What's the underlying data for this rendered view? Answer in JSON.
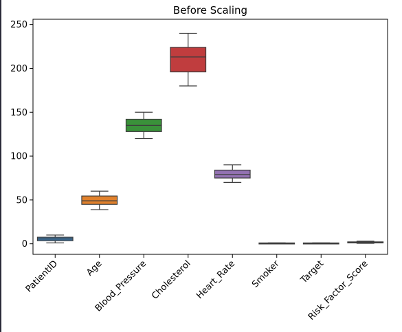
{
  "chart_data": {
    "type": "box",
    "title": "Before Scaling",
    "xlabel": "",
    "ylabel": "",
    "ylim": [
      -12,
      256
    ],
    "yticks": [
      0,
      50,
      100,
      150,
      200,
      250
    ],
    "grid": false,
    "legend": "none",
    "categories": [
      "PatientID",
      "Age",
      "Blood_Pressure",
      "Cholesterol",
      "Heart_Rate",
      "Smoker",
      "Target",
      "Risk_Factor_Score"
    ],
    "boxes": [
      {
        "name": "PatientID",
        "color": "#3a75a8",
        "whisker_low": 1,
        "q1": 3.5,
        "median": 5.5,
        "q3": 7.5,
        "whisker_high": 10
      },
      {
        "name": "Age",
        "color": "#e1812c",
        "whisker_low": 39,
        "q1": 45,
        "median": 49,
        "q3": 54.5,
        "whisker_high": 60
      },
      {
        "name": "Blood_Pressure",
        "color": "#3a923a",
        "whisker_low": 120,
        "q1": 128,
        "median": 135,
        "q3": 142,
        "whisker_high": 150
      },
      {
        "name": "Cholesterol",
        "color": "#c03d3e",
        "whisker_low": 180,
        "q1": 196,
        "median": 213,
        "q3": 224,
        "whisker_high": 240
      },
      {
        "name": "Heart_Rate",
        "color": "#9372b2",
        "whisker_low": 70,
        "q1": 75,
        "median": 79,
        "q3": 84,
        "whisker_high": 90
      },
      {
        "name": "Smoker",
        "color": "#845b53",
        "whisker_low": 0,
        "q1": 0,
        "median": 0.5,
        "q3": 1,
        "whisker_high": 1
      },
      {
        "name": "Target",
        "color": "#d684bd",
        "whisker_low": 0,
        "q1": 0,
        "median": 0.5,
        "q3": 1,
        "whisker_high": 1
      },
      {
        "name": "Risk_Factor_Score",
        "color": "#7f7f7f",
        "whisker_low": 0.5,
        "q1": 1,
        "median": 1.6,
        "q3": 2.2,
        "whisker_high": 3
      }
    ]
  }
}
